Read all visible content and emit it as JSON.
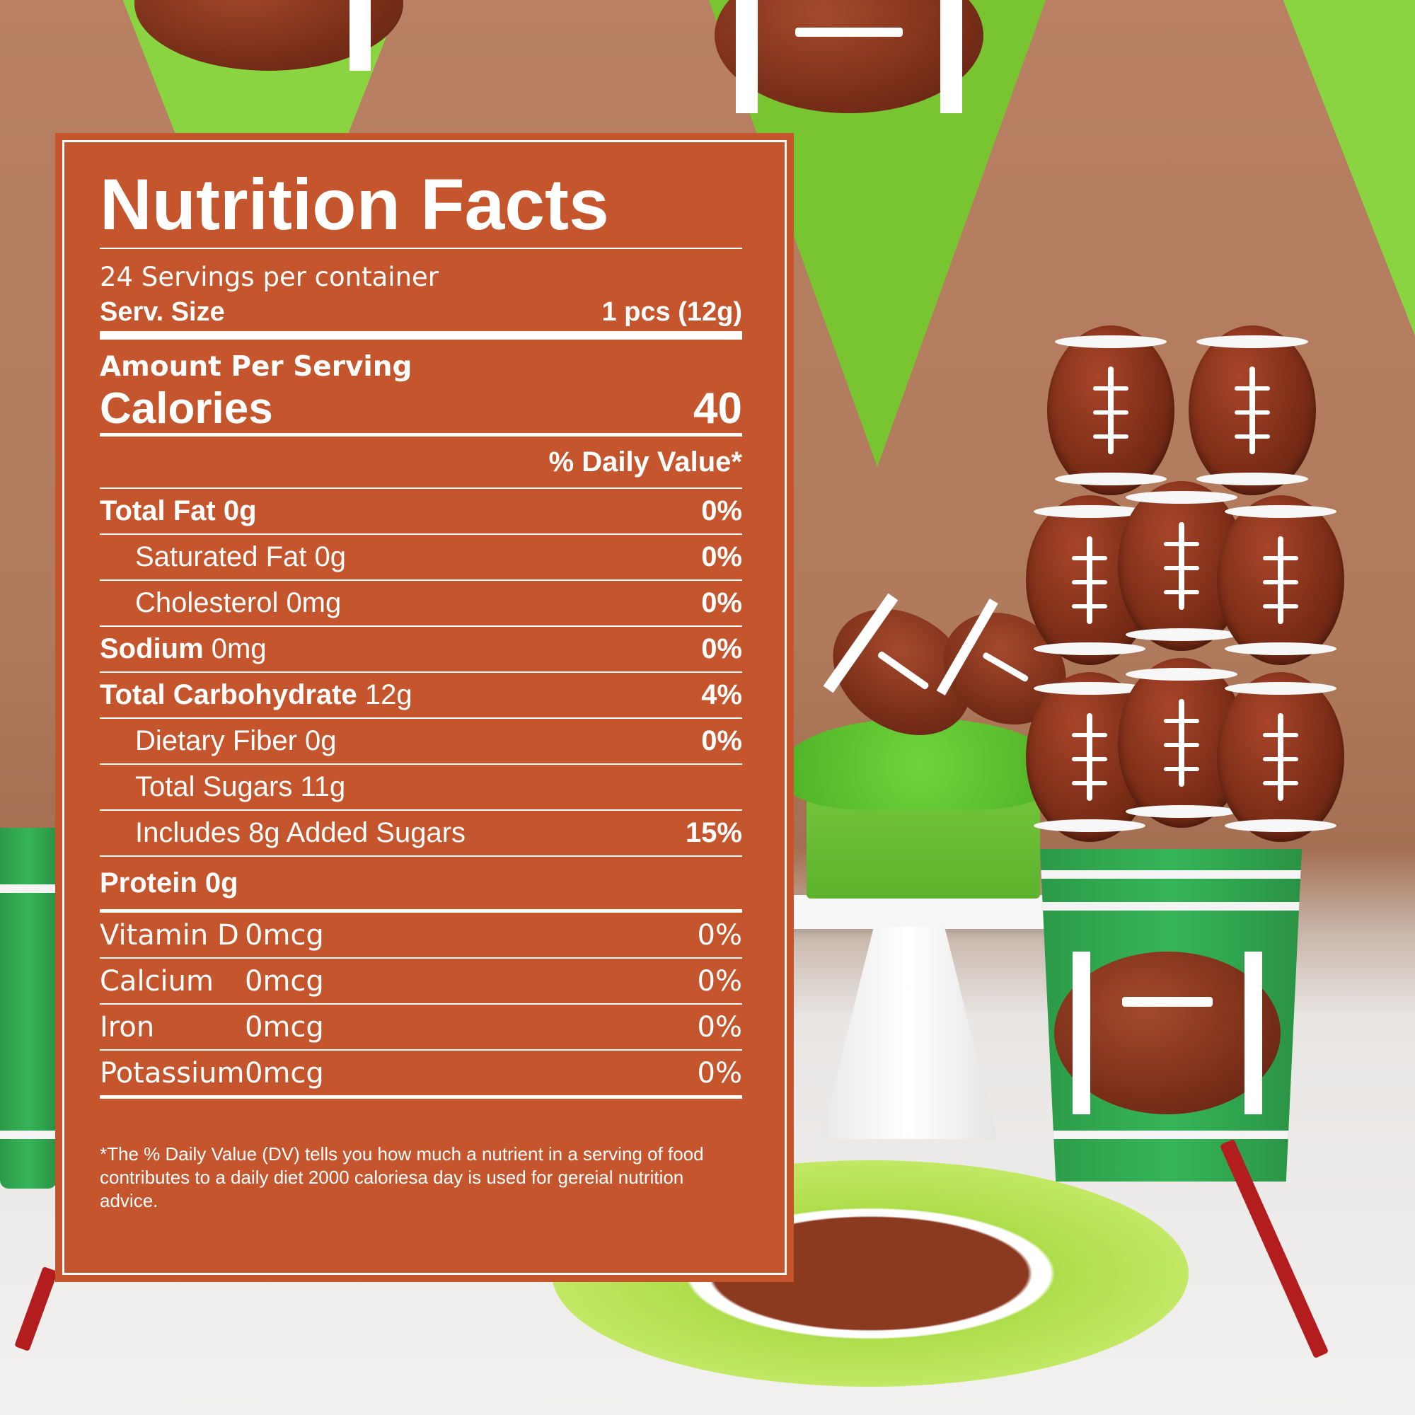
{
  "label": {
    "title": "Nutrition Facts",
    "servings_per_container": "24 Servings per container",
    "serving_size_label": "Serv. Size",
    "serving_size_value": "1 pcs (12g)",
    "amount_per_serving": "Amount Per Serving",
    "calories_label": "Calories",
    "calories_value": "40",
    "daily_value_header": "% Daily Value*",
    "nutrients": [
      {
        "name": "Total Fat",
        "amount": "0g",
        "dv": "0%"
      },
      {
        "name": "Saturated Fat 0g",
        "amount": "",
        "dv": "0%"
      },
      {
        "name": "Cholesterol 0mg",
        "amount": "",
        "dv": "0%"
      },
      {
        "name": "Sodium",
        "amount": "0mg",
        "dv": "0%"
      },
      {
        "name": "Total Carbohydrate",
        "amount": "12g",
        "dv": "4%"
      },
      {
        "name": "Dietary Fiber 0g",
        "amount": "",
        "dv": "0%"
      },
      {
        "name": "Total Sugars 11g",
        "amount": "",
        "dv": ""
      },
      {
        "name": "Includes 8g Added Sugars",
        "amount": "",
        "dv": "15%"
      },
      {
        "name": "Protein",
        "amount": "0g",
        "dv": ""
      }
    ],
    "vitamins": [
      {
        "name": "Vitamin D",
        "amount": "0mcg",
        "dv": "0%"
      },
      {
        "name": "Calcium",
        "amount": "0mcg",
        "dv": "0%"
      },
      {
        "name": "Iron",
        "amount": "0mcg",
        "dv": "0%"
      },
      {
        "name": "Potassium",
        "amount": "0mcg",
        "dv": "0%"
      }
    ],
    "footnote": "*The % Daily Value (DV) tells you how much a nutrient in a serving of food contributes to a daily diet 2000 caloriesa day is used for gereial nutrition advice."
  },
  "colors": {
    "label_background": "#c4552c",
    "label_text": "#ffffff",
    "pennant_green": "#8bd441",
    "cup_green": "#36b558",
    "football_brown": "#7b2f19"
  }
}
